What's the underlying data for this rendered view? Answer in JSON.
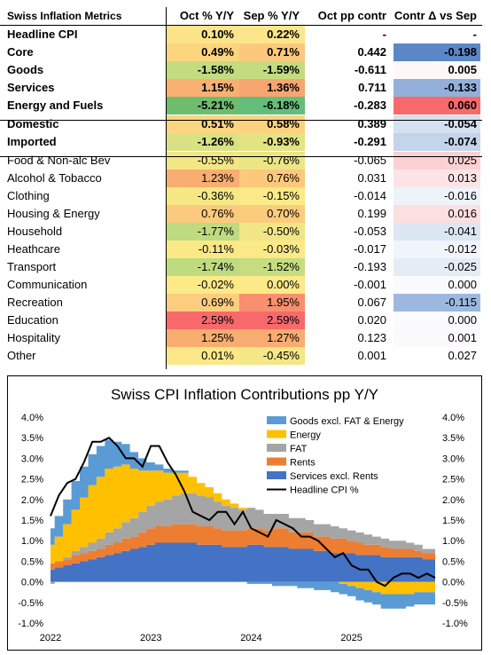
{
  "table": {
    "headers": [
      "Swiss Inflation Metrics",
      "Oct % Y/Y",
      "Sep % Y/Y",
      "Oct pp contr",
      "Contr Δ vs Sep"
    ],
    "rows": [
      {
        "label": "Headline CPI",
        "oct": "0.10%",
        "sep": "0.22%",
        "contr": "-",
        "delta": "-",
        "bold": true,
        "oct_color": "#fce48a",
        "sep_color": "#fce68b",
        "delta_color": "#ffffff"
      },
      {
        "label": "Core",
        "oct": "0.49%",
        "sep": "0.71%",
        "contr": "0.442",
        "delta": "-0.198",
        "bold": true,
        "oct_color": "#fcd57f",
        "sep_color": "#fcc97c",
        "delta_color": "#5b87c6"
      },
      {
        "label": "Goods",
        "oct": "-1.58%",
        "sep": "-1.59%",
        "contr": "-0.611",
        "delta": "0.005",
        "bold": true,
        "oct_color": "#c4dc80",
        "sep_color": "#c4dc80",
        "delta_color": "#fdf7f8"
      },
      {
        "label": "Services",
        "oct": "1.15%",
        "sep": "1.36%",
        "contr": "0.711",
        "delta": "-0.133",
        "bold": true,
        "oct_color": "#f9b071",
        "sep_color": "#f8a56f",
        "delta_color": "#92b0da"
      },
      {
        "label": "Energy and Fuels",
        "oct": "-5.21%",
        "sep": "-6.18%",
        "contr": "-0.283",
        "delta": "0.060",
        "bold": true,
        "oct_color": "#6ebd6f",
        "sep_color": "#63be7b",
        "delta_color": "#f8696b"
      },
      {
        "label": "Domestic",
        "oct": "0.51%",
        "sep": "0.58%",
        "contr": "0.389",
        "delta": "-0.054",
        "bold": true,
        "oct_color": "#fcd580",
        "sep_color": "#fcd27f",
        "delta_color": "#d5e0f0"
      },
      {
        "label": "Imported",
        "oct": "-1.26%",
        "sep": "-0.93%",
        "contr": "-0.291",
        "delta": "-0.074",
        "bold": true,
        "oct_color": "#d9e183",
        "sep_color": "#e3e384",
        "delta_color": "#c4d4ea"
      },
      {
        "label": "Food & Non-alc Bev",
        "oct": "-0.55%",
        "sep": "-0.76%",
        "contr": "-0.065",
        "delta": "0.025",
        "bold": false,
        "oct_color": "#f2e686",
        "sep_color": "#ece585",
        "delta_color": "#fbd0d3"
      },
      {
        "label": "Alcohol & Tobacco",
        "oct": "1.23%",
        "sep": "0.76%",
        "contr": "0.031",
        "delta": "0.013",
        "bold": false,
        "oct_color": "#f9ae71",
        "sep_color": "#fcc97c",
        "delta_color": "#fce4e6"
      },
      {
        "label": "Clothing",
        "oct": "-0.36%",
        "sep": "-0.15%",
        "contr": "-0.014",
        "delta": "-0.016",
        "bold": false,
        "oct_color": "#f6e885",
        "sep_color": "#fce988",
        "delta_color": "#eef2f9"
      },
      {
        "label": "Housing & Energy",
        "oct": "0.76%",
        "sep": "0.70%",
        "contr": "0.199",
        "delta": "0.016",
        "bold": false,
        "oct_color": "#fcca7d",
        "sep_color": "#fccc7d",
        "delta_color": "#fcdfe1"
      },
      {
        "label": "Household",
        "oct": "-1.77%",
        "sep": "-0.50%",
        "contr": "-0.053",
        "delta": "-0.041",
        "bold": false,
        "oct_color": "#bedb80",
        "sep_color": "#f1e686",
        "delta_color": "#dde6f3"
      },
      {
        "label": "Heathcare",
        "oct": "-0.11%",
        "sep": "-0.03%",
        "contr": "-0.017",
        "delta": "-0.012",
        "bold": false,
        "oct_color": "#fbe987",
        "sep_color": "#fce988",
        "delta_color": "#f1f5fb"
      },
      {
        "label": "Transport",
        "oct": "-1.74%",
        "sep": "-1.52%",
        "contr": "-0.193",
        "delta": "-0.025",
        "bold": false,
        "oct_color": "#bfdb80",
        "sep_color": "#c6dc80",
        "delta_color": "#e6ecf6"
      },
      {
        "label": "Communication",
        "oct": "-0.02%",
        "sep": "0.00%",
        "contr": "-0.001",
        "delta": "0.000",
        "bold": false,
        "oct_color": "#fce988",
        "sep_color": "#fce988",
        "delta_color": "#fbfbfd"
      },
      {
        "label": "Recreation",
        "oct": "0.69%",
        "sep": "1.95%",
        "contr": "0.067",
        "delta": "-0.115",
        "bold": false,
        "oct_color": "#fccd7e",
        "sep_color": "#f88f6f",
        "delta_color": "#9cb8df"
      },
      {
        "label": "Education",
        "oct": "2.59%",
        "sep": "2.59%",
        "contr": "0.020",
        "delta": "0.000",
        "bold": false,
        "oct_color": "#f8696b",
        "sep_color": "#f8696b",
        "delta_color": "#fbfbfd"
      },
      {
        "label": "Hospitality",
        "oct": "1.25%",
        "sep": "1.27%",
        "contr": "0.123",
        "delta": "0.001",
        "bold": false,
        "oct_color": "#f9ad71",
        "sep_color": "#f9ac71",
        "delta_color": "#fbf9fb"
      },
      {
        "label": "Other",
        "oct": "0.01%",
        "sep": "-0.45%",
        "contr": "0.001",
        "delta": "0.027",
        "bold": false,
        "oct_color": "#fce888",
        "sep_color": "#f3e786",
        "delta_color": "#ffffff"
      }
    ]
  },
  "chart_data": {
    "type": "area",
    "title": "Swiss CPI Inflation Contributions pp Y/Y",
    "xlabel": "",
    "ylabel": "",
    "ylim": [
      -1.0,
      4.0
    ],
    "y_ticks": [
      "4.0%",
      "3.5%",
      "3.0%",
      "2.5%",
      "2.0%",
      "1.5%",
      "1.0%",
      "0.5%",
      "0.0%",
      "-0.5%",
      "-1.0%"
    ],
    "x_ticks": [
      "2022",
      "2023",
      "2024",
      "2025"
    ],
    "x_tick_positions": [
      0,
      12,
      24,
      36
    ],
    "x_range": [
      0,
      46
    ],
    "legend_position": "top-right",
    "stacked": true,
    "series": [
      {
        "name": "Services excl. Rents",
        "color": "#4472c4",
        "values": [
          0.3,
          0.35,
          0.4,
          0.45,
          0.5,
          0.55,
          0.6,
          0.65,
          0.7,
          0.75,
          0.8,
          0.85,
          0.9,
          0.95,
          0.95,
          0.95,
          0.95,
          0.95,
          0.9,
          0.9,
          0.9,
          0.85,
          0.85,
          0.85,
          0.9,
          0.9,
          0.85,
          0.85,
          0.85,
          0.8,
          0.8,
          0.8,
          0.75,
          0.75,
          0.7,
          0.7,
          0.7,
          0.65,
          0.65,
          0.65,
          0.6,
          0.6,
          0.6,
          0.6,
          0.6,
          0.55,
          0.55
        ]
      },
      {
        "name": "Rents",
        "color": "#ed7d31",
        "values": [
          0.15,
          0.15,
          0.15,
          0.2,
          0.2,
          0.2,
          0.2,
          0.25,
          0.25,
          0.3,
          0.3,
          0.35,
          0.4,
          0.4,
          0.4,
          0.45,
          0.45,
          0.45,
          0.45,
          0.45,
          0.4,
          0.4,
          0.4,
          0.4,
          0.4,
          0.4,
          0.4,
          0.45,
          0.45,
          0.4,
          0.4,
          0.4,
          0.35,
          0.35,
          0.35,
          0.35,
          0.3,
          0.3,
          0.25,
          0.25,
          0.25,
          0.2,
          0.2,
          0.2,
          0.15,
          0.15,
          0.15
        ]
      },
      {
        "name": "FAT",
        "color": "#a5a5a5",
        "values": [
          -0.05,
          0.0,
          0.05,
          0.1,
          0.15,
          0.2,
          0.25,
          0.3,
          0.35,
          0.4,
          0.45,
          0.5,
          0.55,
          0.6,
          0.65,
          0.7,
          0.75,
          0.75,
          0.75,
          0.7,
          0.65,
          0.6,
          0.55,
          0.5,
          0.5,
          0.45,
          0.4,
          0.35,
          0.35,
          0.35,
          0.35,
          0.3,
          0.3,
          0.3,
          0.3,
          0.25,
          0.25,
          0.25,
          0.25,
          0.2,
          0.2,
          0.2,
          0.2,
          0.15,
          0.15,
          0.1,
          0.1
        ]
      },
      {
        "name": "Energy",
        "color": "#ffc000",
        "values": [
          0.45,
          0.6,
          0.8,
          1.0,
          1.2,
          1.4,
          1.5,
          1.55,
          1.5,
          1.4,
          1.2,
          1.0,
          0.85,
          0.75,
          0.65,
          0.55,
          0.5,
          0.4,
          0.3,
          0.25,
          0.2,
          0.15,
          0.1,
          0.05,
          0.0,
          0.0,
          0.0,
          0.0,
          0.0,
          0.0,
          0.0,
          0.0,
          0.0,
          0.0,
          0.0,
          -0.05,
          -0.1,
          -0.15,
          -0.2,
          -0.25,
          -0.3,
          -0.3,
          -0.3,
          -0.3,
          -0.25,
          -0.25,
          -0.25
        ]
      },
      {
        "name": "Goods excl. FAT & Energy",
        "color": "#5b9bd5",
        "values": [
          0.4,
          0.5,
          0.6,
          0.7,
          0.75,
          0.75,
          0.75,
          0.7,
          0.6,
          0.5,
          0.4,
          0.3,
          0.2,
          0.15,
          0.1,
          0.05,
          0.05,
          0.0,
          0.0,
          0.0,
          0.0,
          0.0,
          0.0,
          0.0,
          -0.05,
          -0.05,
          -0.05,
          -0.1,
          -0.1,
          -0.1,
          -0.15,
          -0.15,
          -0.2,
          -0.2,
          -0.25,
          -0.25,
          -0.25,
          -0.3,
          -0.3,
          -0.3,
          -0.35,
          -0.35,
          -0.35,
          -0.3,
          -0.3,
          -0.3,
          -0.3
        ]
      }
    ],
    "line_series": {
      "name": "Headline CPI %",
      "color": "#000000",
      "values": [
        1.6,
        2.1,
        2.4,
        2.5,
        2.9,
        3.4,
        3.4,
        3.5,
        3.3,
        3.0,
        3.0,
        2.8,
        3.3,
        3.3,
        2.9,
        2.6,
        2.2,
        1.7,
        1.6,
        1.5,
        1.7,
        1.7,
        1.4,
        1.7,
        1.3,
        1.2,
        1.1,
        1.5,
        1.4,
        1.3,
        1.1,
        1.1,
        1.0,
        0.8,
        0.6,
        0.7,
        0.4,
        0.3,
        0.3,
        0.0,
        -0.1,
        0.1,
        0.2,
        0.2,
        0.1,
        0.2,
        0.1
      ]
    }
  }
}
